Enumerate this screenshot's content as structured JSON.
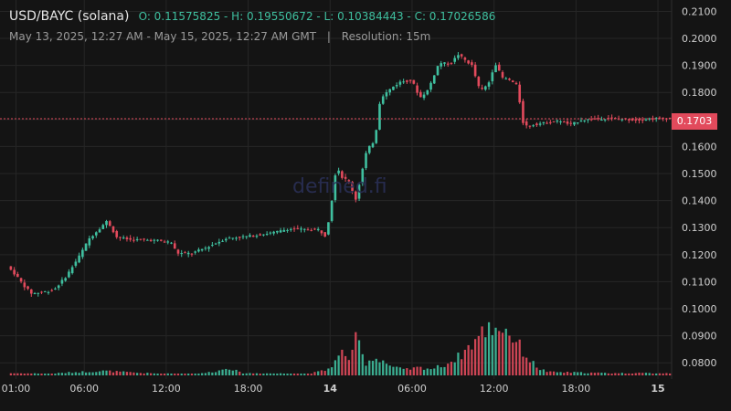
{
  "header": {
    "pair": "USD/BAYC (solana)",
    "ohlc": "O: 0.11575825 - H: 0.19550672 - L: 0.10384443 - C: 0.17026586",
    "range": "May 13, 2025, 12:27 AM - May 15, 2025, 12:27 AM GMT",
    "separator": "|",
    "resolution": "Resolution: 15m"
  },
  "watermark": "defined.fi",
  "last_price_label": "0.1703",
  "colors": {
    "up": "#3fbf9f",
    "down": "#e24a5c",
    "grid": "#262626",
    "background": "#141414",
    "axis_text": "#cfcfcf"
  },
  "chart_data": {
    "type": "candlestick",
    "title": "USD/BAYC (solana)",
    "ylim": [
      0.075,
      0.2115
    ],
    "yticks": [
      0.08,
      0.09,
      0.1,
      0.11,
      0.12,
      0.13,
      0.14,
      0.15,
      0.16,
      0.17,
      0.18,
      0.19,
      0.2,
      0.21
    ],
    "ytick_labels": [
      "0.0800",
      "0.0900",
      "0.1000",
      "0.1100",
      "0.1200",
      "0.1300",
      "0.1400",
      "0.1500",
      "0.1600",
      "0.1700",
      "0.1800",
      "0.1900",
      "0.2000",
      "0.2100"
    ],
    "x_hours_range": [
      0,
      48.5
    ],
    "xticks": [
      {
        "label": "01:00",
        "hours": 0.5,
        "bold": false
      },
      {
        "label": "06:00",
        "hours": 5.5,
        "bold": false
      },
      {
        "label": "12:00",
        "hours": 11.5,
        "bold": false
      },
      {
        "label": "18:00",
        "hours": 17.5,
        "bold": false
      },
      {
        "label": "14",
        "hours": 23.5,
        "bold": true
      },
      {
        "label": "06:00",
        "hours": 29.5,
        "bold": false
      },
      {
        "label": "12:00",
        "hours": 35.5,
        "bold": false
      },
      {
        "label": "18:00",
        "hours": 41.5,
        "bold": false
      },
      {
        "label": "15",
        "hours": 47.5,
        "bold": true
      }
    ],
    "last_price": 0.1703,
    "price_path": [
      [
        0,
        0.1157
      ],
      [
        0.6,
        0.1125
      ],
      [
        1.3,
        0.108
      ],
      [
        1.8,
        0.1055
      ],
      [
        2.3,
        0.106
      ],
      [
        3,
        0.1065
      ],
      [
        3.5,
        0.1075
      ],
      [
        4.3,
        0.112
      ],
      [
        5.2,
        0.119
      ],
      [
        6,
        0.126
      ],
      [
        7,
        0.131
      ],
      [
        7.3,
        0.1325
      ],
      [
        8,
        0.1265
      ],
      [
        9,
        0.1255
      ],
      [
        10,
        0.1255
      ],
      [
        11,
        0.1252
      ],
      [
        12,
        0.1245
      ],
      [
        12.4,
        0.1205
      ],
      [
        13.5,
        0.1205
      ],
      [
        14.5,
        0.1225
      ],
      [
        16,
        0.126
      ],
      [
        18,
        0.127
      ],
      [
        19.8,
        0.1285
      ],
      [
        20.5,
        0.1295
      ],
      [
        22,
        0.1292
      ],
      [
        22.9,
        0.1293
      ],
      [
        23.2,
        0.126
      ],
      [
        23.6,
        0.1345
      ],
      [
        24.1,
        0.1535
      ],
      [
        24.4,
        0.149
      ],
      [
        25,
        0.147
      ],
      [
        25.5,
        0.1405
      ],
      [
        26.3,
        0.1585
      ],
      [
        26.9,
        0.1625
      ],
      [
        27.3,
        0.178
      ],
      [
        28.2,
        0.182
      ],
      [
        28.8,
        0.184
      ],
      [
        29.6,
        0.1845
      ],
      [
        30.2,
        0.178
      ],
      [
        30.8,
        0.181
      ],
      [
        31.6,
        0.191
      ],
      [
        32.4,
        0.1905
      ],
      [
        33,
        0.194
      ],
      [
        34,
        0.19
      ],
      [
        34.6,
        0.1805
      ],
      [
        35.2,
        0.183
      ],
      [
        35.7,
        0.191
      ],
      [
        36.2,
        0.1855
      ],
      [
        36.8,
        0.1845
      ],
      [
        37.3,
        0.1825
      ],
      [
        37.8,
        0.1675
      ],
      [
        39,
        0.1685
      ],
      [
        40.5,
        0.1695
      ],
      [
        41.2,
        0.168
      ],
      [
        42,
        0.1698
      ],
      [
        44,
        0.1705
      ],
      [
        46,
        0.1698
      ],
      [
        47,
        0.1703
      ],
      [
        48.5,
        0.1705
      ]
    ],
    "volume_profile": [
      [
        0,
        0.04
      ],
      [
        3,
        0.03
      ],
      [
        5,
        0.06
      ],
      [
        7,
        0.08
      ],
      [
        9,
        0.05
      ],
      [
        11,
        0.03
      ],
      [
        14,
        0.03
      ],
      [
        15.5,
        0.09
      ],
      [
        16,
        0.15
      ],
      [
        17,
        0.04
      ],
      [
        22,
        0.03
      ],
      [
        23.3,
        0.1
      ],
      [
        24,
        0.28
      ],
      [
        24.5,
        0.45
      ],
      [
        25,
        0.25
      ],
      [
        25.5,
        0.75
      ],
      [
        26,
        0.2
      ],
      [
        26.5,
        0.3
      ],
      [
        27.2,
        0.3
      ],
      [
        28,
        0.15
      ],
      [
        29,
        0.1
      ],
      [
        30,
        0.14
      ],
      [
        31,
        0.12
      ],
      [
        32,
        0.2
      ],
      [
        33,
        0.35
      ],
      [
        34,
        0.6
      ],
      [
        35,
        0.85
      ],
      [
        36,
        0.88
      ],
      [
        36.5,
        0.8
      ],
      [
        37,
        0.65
      ],
      [
        38,
        0.3
      ],
      [
        38.8,
        0.12
      ],
      [
        39.5,
        0.06
      ],
      [
        44,
        0.04
      ],
      [
        48.5,
        0.04
      ]
    ],
    "volume_max_ratio": 1
  }
}
